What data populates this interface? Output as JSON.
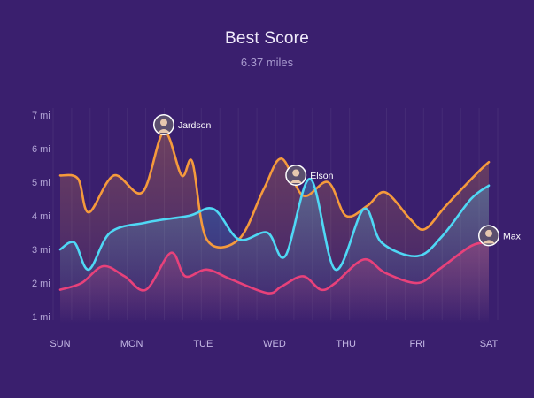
{
  "header": {
    "title": "Best Score",
    "subtitle": "6.37 miles"
  },
  "chart_data": {
    "type": "line",
    "smooth": true,
    "area_fill": true,
    "grid": "vertical-faint",
    "x": [
      "SUN",
      "MON",
      "TUE",
      "WED",
      "THU",
      "FRI",
      "SAT"
    ],
    "yticks": [
      "1 mi",
      "2 mi",
      "3 mi",
      "4 mi",
      "5 mi",
      "6 mi",
      "7 mi"
    ],
    "ylim": [
      0.8,
      7.2
    ],
    "series": [
      {
        "color": "#f59a3c",
        "points": [
          [
            0,
            5.2
          ],
          [
            0.25,
            5.1
          ],
          [
            0.4,
            4.1
          ],
          [
            0.75,
            5.2
          ],
          [
            1.15,
            4.7
          ],
          [
            1.45,
            6.5
          ],
          [
            1.7,
            5.2
          ],
          [
            1.85,
            5.6
          ],
          [
            2.05,
            3.3
          ],
          [
            2.5,
            3.3
          ],
          [
            2.85,
            4.8
          ],
          [
            3.1,
            5.7
          ],
          [
            3.4,
            4.6
          ],
          [
            3.75,
            5.0
          ],
          [
            4.0,
            4.0
          ],
          [
            4.3,
            4.3
          ],
          [
            4.55,
            4.7
          ],
          [
            4.9,
            3.9
          ],
          [
            5.1,
            3.6
          ],
          [
            5.4,
            4.3
          ],
          [
            5.85,
            5.3
          ],
          [
            6.0,
            5.6
          ]
        ]
      },
      {
        "color": "#4fd8f5",
        "points": [
          [
            0,
            3.0
          ],
          [
            0.2,
            3.2
          ],
          [
            0.4,
            2.4
          ],
          [
            0.7,
            3.5
          ],
          [
            1.2,
            3.8
          ],
          [
            1.8,
            4.0
          ],
          [
            2.15,
            4.2
          ],
          [
            2.5,
            3.3
          ],
          [
            2.9,
            3.5
          ],
          [
            3.15,
            2.8
          ],
          [
            3.5,
            5.1
          ],
          [
            3.85,
            2.4
          ],
          [
            4.25,
            4.2
          ],
          [
            4.5,
            3.2
          ],
          [
            5.0,
            2.8
          ],
          [
            5.35,
            3.4
          ],
          [
            5.75,
            4.5
          ],
          [
            6.0,
            4.9
          ]
        ]
      },
      {
        "color": "#e8417a",
        "points": [
          [
            0,
            1.8
          ],
          [
            0.3,
            2.0
          ],
          [
            0.6,
            2.5
          ],
          [
            0.9,
            2.2
          ],
          [
            1.2,
            1.8
          ],
          [
            1.55,
            2.9
          ],
          [
            1.75,
            2.2
          ],
          [
            2.05,
            2.4
          ],
          [
            2.4,
            2.1
          ],
          [
            2.9,
            1.7
          ],
          [
            3.1,
            1.9
          ],
          [
            3.4,
            2.2
          ],
          [
            3.65,
            1.8
          ],
          [
            3.85,
            2.0
          ],
          [
            4.25,
            2.7
          ],
          [
            4.55,
            2.3
          ],
          [
            5.0,
            2.0
          ],
          [
            5.3,
            2.4
          ],
          [
            5.75,
            3.1
          ],
          [
            6.0,
            3.2
          ]
        ]
      }
    ],
    "markers": [
      {
        "name": "Jardson",
        "x": 1.45,
        "y": 6.5
      },
      {
        "name": "Elson",
        "x": 3.3,
        "y": 5.0
      },
      {
        "name": "Max",
        "x": 6.0,
        "y": 3.2
      }
    ]
  }
}
